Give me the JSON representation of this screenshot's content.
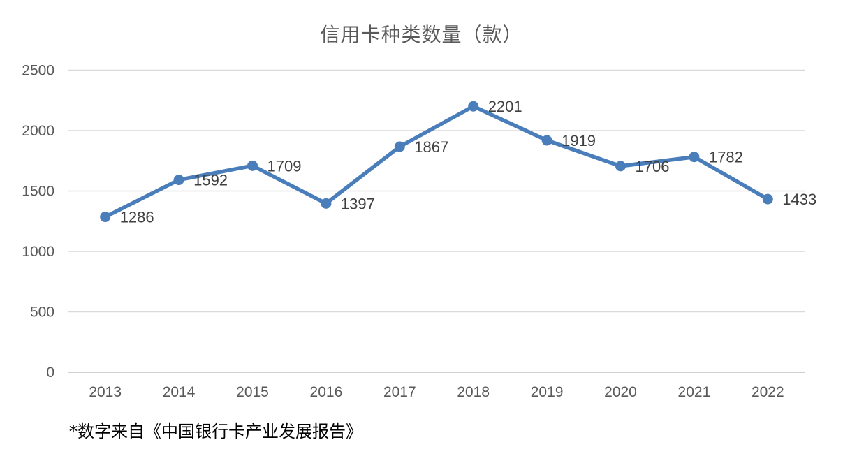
{
  "title": "信用卡种类数量（款）",
  "footnote": "*数字来自《中国银行卡产业发展报告》",
  "colors": {
    "line": "#4A7EBB",
    "marker": "#4A7EBB",
    "gridline": "#D9D9D9",
    "axis_line": "#C0C0C0",
    "tick_label": "#595959",
    "data_label": "#404040",
    "title": "#595959",
    "footnote": "#000000"
  },
  "chart_data": {
    "type": "line",
    "title": "信用卡种类数量（款）",
    "categories": [
      "2013",
      "2014",
      "2015",
      "2016",
      "2017",
      "2018",
      "2019",
      "2020",
      "2021",
      "2022"
    ],
    "values": [
      1286,
      1592,
      1709,
      1397,
      1867,
      2201,
      1919,
      1706,
      1782,
      1433
    ],
    "data_labels": [
      "1286",
      "1592",
      "1709",
      "1397",
      "1867",
      "2201",
      "1919",
      "1706",
      "1782",
      "1433"
    ],
    "xlabel": "",
    "ylabel": "",
    "ylim": [
      0,
      2500
    ],
    "yticks": [
      0,
      500,
      1000,
      1500,
      2000,
      2500
    ],
    "grid": true,
    "legend": "none",
    "markers": true,
    "data_label_position": "right"
  }
}
